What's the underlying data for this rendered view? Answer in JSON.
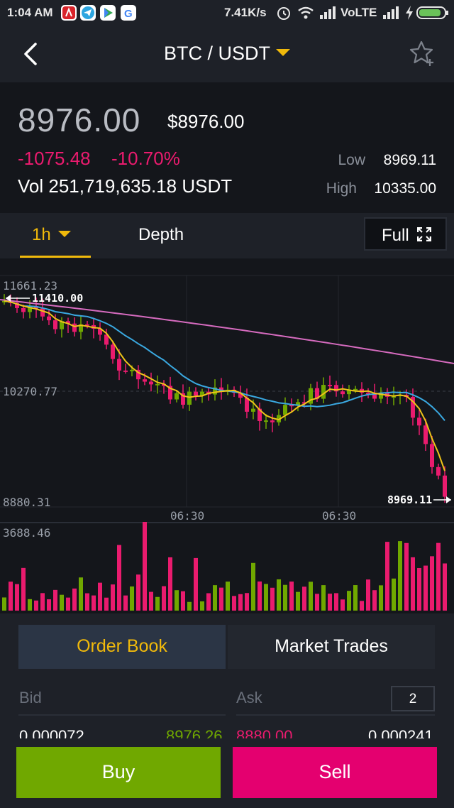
{
  "status_bar": {
    "time": "1:04 AM",
    "speed": "7.41K/s",
    "network": "VoLTE"
  },
  "header": {
    "pair": "BTC / USDT",
    "back_icon": "back-arrow-icon",
    "favorite_icon": "star-add-icon"
  },
  "ticker": {
    "last_price": "8976.00",
    "fiat_price": "$8976.00",
    "change": "-1075.48",
    "change_pct": "-10.70%",
    "volume": "Vol 251,719,635.18 USDT",
    "low_label": "Low",
    "low_value": "8969.11",
    "high_label": "High",
    "high_value": "10335.00",
    "colors": {
      "down": "#ea1b6e",
      "up": "#70a800",
      "accent": "#f0b90b"
    }
  },
  "chart_tabs": {
    "interval": "1h",
    "depth": "Depth",
    "full": "Full"
  },
  "chart_data": {
    "type": "candlestick",
    "y_labels": [
      "11661.23",
      "10270.77",
      "8880.31"
    ],
    "x_labels": [
      "06:30",
      "06:30"
    ],
    "high_marker": "11410.00",
    "low_marker": "8969.11",
    "ylim": [
      8880.31,
      11661.23
    ],
    "volume_max_label": "3688.46",
    "ma_colors": {
      "ma7": "#f0c419",
      "ma25": "#3aa8e0",
      "ma99": "#d66bbf"
    }
  },
  "order_book": {
    "tab_order_book": "Order Book",
    "tab_market_trades": "Market Trades",
    "bid_label": "Bid",
    "ask_label": "Ask",
    "depth_value": "2",
    "row1": {
      "bid_qty": "0.000072",
      "bid_price": "8976.26",
      "ask_price": "8880.00",
      "ask_qty": "0.000241"
    }
  },
  "actions": {
    "buy": "Buy",
    "sell": "Sell"
  }
}
